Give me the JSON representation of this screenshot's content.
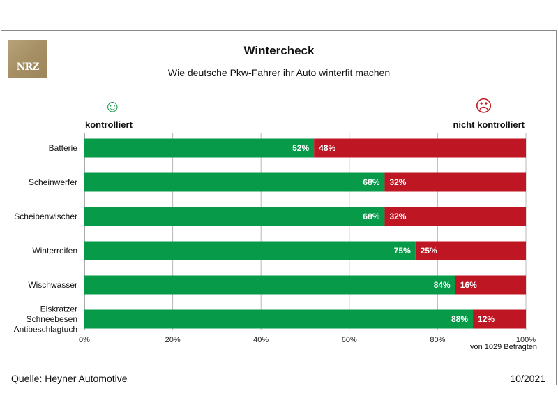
{
  "header": {
    "logo_text": "NRZ",
    "title": "Wintercheck",
    "subtitle": "Wie deutsche Pkw-Fahrer ihr Auto winterfit machen"
  },
  "legend": {
    "left_icon": "smiley-icon",
    "right_icon": "frown-icon",
    "left_label": "kontrolliert",
    "right_label": "nicht kontrolliert"
  },
  "colors": {
    "green": "#079a49",
    "red": "#be1622"
  },
  "chart_data": {
    "type": "bar",
    "orientation": "horizontal",
    "stacked": true,
    "categories": [
      [
        "Batterie"
      ],
      [
        "Scheinwerfer"
      ],
      [
        "Scheibenwischer"
      ],
      [
        "Winterreifen"
      ],
      [
        "Wischwasser"
      ],
      [
        "Eiskratzer",
        "Schneebesen",
        "Antibeschlagtuch"
      ]
    ],
    "series": [
      {
        "name": "kontrolliert",
        "values": [
          52,
          68,
          68,
          75,
          84,
          88
        ],
        "labels": [
          "52%",
          "68%",
          "68%",
          "75%",
          "84%",
          "88%"
        ]
      },
      {
        "name": "nicht kontrolliert",
        "values": [
          48,
          32,
          32,
          25,
          16,
          12
        ],
        "labels": [
          "48%",
          "32%",
          "32%",
          "25%",
          "16%",
          "12%"
        ]
      }
    ],
    "xlim": [
      0,
      100
    ],
    "xticks": [
      "0%",
      "20%",
      "40%",
      "60%",
      "80%",
      "100%"
    ],
    "grid": true,
    "legend": "top"
  },
  "footer": {
    "note": "von 1029 Befragten",
    "source": "Quelle: Heyner Automotive",
    "date": "10/2021"
  }
}
